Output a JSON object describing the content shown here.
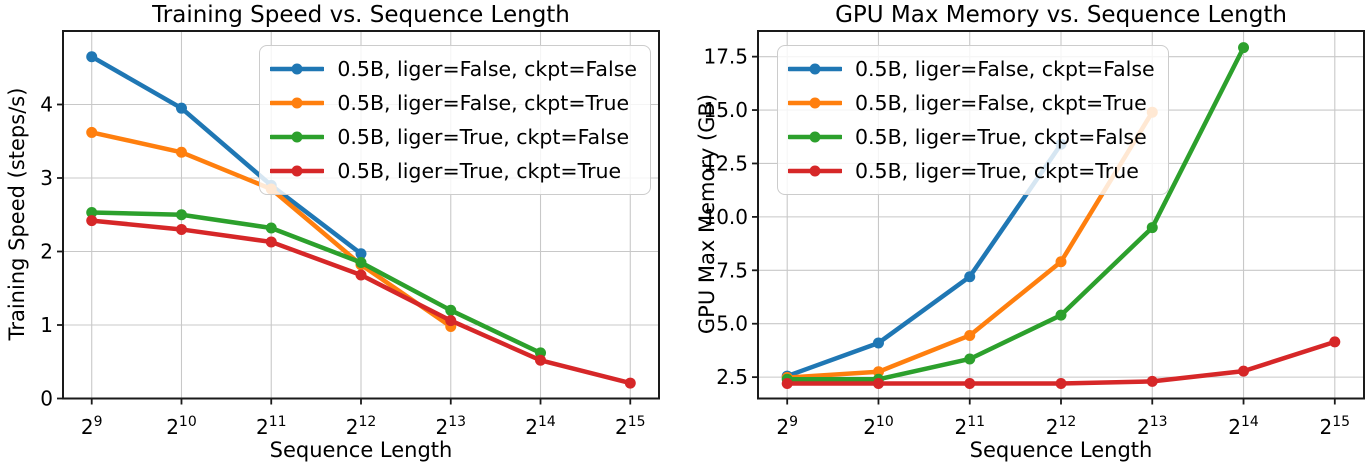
{
  "figure": {
    "background_color": "#ffffff",
    "grid_color": "#c8c8c8",
    "spine_color": "#1a1a1a",
    "text_color": "#000000"
  },
  "chart_data": [
    {
      "type": "line",
      "title": "Training Speed vs. Sequence Length",
      "xlabel": "Sequence Length",
      "ylabel": "Training Speed (steps/s)",
      "x_tick_labels": [
        "2^9",
        "2^10",
        "2^11",
        "2^12",
        "2^13",
        "2^14",
        "2^15"
      ],
      "x_exponents": [
        9,
        10,
        11,
        12,
        13,
        14,
        15
      ],
      "ytick_values": [
        0,
        1,
        2,
        3,
        4
      ],
      "ytick_labels": [
        "0",
        "1",
        "2",
        "3",
        "4"
      ],
      "ylim": [
        0,
        5.0
      ],
      "grid": true,
      "legend_position": "upper right",
      "marker": "circle",
      "series": [
        {
          "name": "0.5B, liger=False, ckpt=False",
          "color": "#1f77b4",
          "x_exponents": [
            9,
            10,
            11,
            12
          ],
          "values": [
            4.65,
            3.95,
            2.9,
            1.97
          ]
        },
        {
          "name": "0.5B, liger=False, ckpt=True",
          "color": "#ff7f0e",
          "x_exponents": [
            9,
            10,
            11,
            12,
            13
          ],
          "values": [
            3.62,
            3.35,
            2.85,
            1.82,
            0.98
          ]
        },
        {
          "name": "0.5B, liger=True, ckpt=False",
          "color": "#2ca02c",
          "x_exponents": [
            9,
            10,
            11,
            12,
            13,
            14
          ],
          "values": [
            2.53,
            2.5,
            2.32,
            1.85,
            1.2,
            0.62
          ]
        },
        {
          "name": "0.5B, liger=True, ckpt=True",
          "color": "#d62728",
          "x_exponents": [
            9,
            10,
            11,
            12,
            13,
            14,
            15
          ],
          "values": [
            2.42,
            2.3,
            2.13,
            1.68,
            1.06,
            0.52,
            0.21
          ]
        }
      ]
    },
    {
      "type": "line",
      "title": "GPU Max Memory vs. Sequence Length",
      "xlabel": "Sequence Length",
      "ylabel": "GPU Max Memory (GB)",
      "x_tick_labels": [
        "2^9",
        "2^10",
        "2^11",
        "2^12",
        "2^13",
        "2^14",
        "2^15"
      ],
      "x_exponents": [
        9,
        10,
        11,
        12,
        13,
        14,
        15
      ],
      "ytick_values": [
        2.5,
        5.0,
        7.5,
        10.0,
        12.5,
        15.0,
        17.5
      ],
      "ytick_labels": [
        "2.5",
        "5.0",
        "7.5",
        "10.0",
        "12.5",
        "15.0",
        "17.5"
      ],
      "ylim": [
        1.5,
        18.7
      ],
      "grid": true,
      "legend_position": "upper left",
      "marker": "circle",
      "series": [
        {
          "name": "0.5B, liger=False, ckpt=False",
          "color": "#1f77b4",
          "x_exponents": [
            9,
            10,
            11,
            12
          ],
          "values": [
            2.55,
            4.1,
            7.2,
            13.4
          ]
        },
        {
          "name": "0.5B, liger=False, ckpt=True",
          "color": "#ff7f0e",
          "x_exponents": [
            9,
            10,
            11,
            12,
            13
          ],
          "values": [
            2.48,
            2.75,
            4.45,
            7.9,
            14.9
          ]
        },
        {
          "name": "0.5B, liger=True, ckpt=False",
          "color": "#2ca02c",
          "x_exponents": [
            9,
            10,
            11,
            12,
            13,
            14
          ],
          "values": [
            2.4,
            2.4,
            3.35,
            5.4,
            9.5,
            17.92
          ]
        },
        {
          "name": "0.5B, liger=True, ckpt=True",
          "color": "#d62728",
          "x_exponents": [
            9,
            10,
            11,
            12,
            13,
            14,
            15
          ],
          "values": [
            2.2,
            2.2,
            2.2,
            2.2,
            2.3,
            2.78,
            4.15
          ]
        }
      ]
    }
  ]
}
